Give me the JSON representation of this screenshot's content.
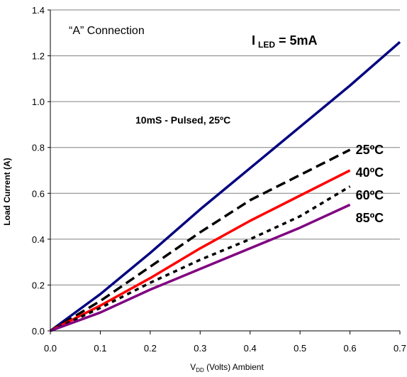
{
  "chart_data": {
    "type": "line",
    "title": "",
    "xlabel": {
      "main": "V",
      "sub": "DD",
      "rest": " (Volts) Ambient"
    },
    "ylabel": "Load Current (A)",
    "xlim": [
      0,
      0.7
    ],
    "ylim": [
      0,
      1.4
    ],
    "x_ticks": [
      "0.0",
      "0.1",
      "0.2",
      "0.3",
      "0.4",
      "0.5",
      "0.6",
      "0.7"
    ],
    "y_ticks": [
      "0.0",
      "0.2",
      "0.4",
      "0.6",
      "0.8",
      "1.0",
      "1.2",
      "1.4"
    ],
    "grid": "horizontal",
    "legend": "none",
    "annotations": {
      "connection": "“A” Connection",
      "iled_main": "I",
      "iled_sub": "LED",
      "iled_rest": " = 5mA",
      "pulsed": "10mS - Pulsed, 25ºC"
    },
    "series": [
      {
        "label": "",
        "color": "#000080",
        "style": "solid",
        "x": [
          0,
          0.1,
          0.2,
          0.3,
          0.4,
          0.5,
          0.6,
          0.7
        ],
        "y": [
          0,
          0.16,
          0.34,
          0.53,
          0.71,
          0.89,
          1.07,
          1.26
        ]
      },
      {
        "label": "25ºC",
        "color": "#000000",
        "style": "dashed",
        "x": [
          0,
          0.1,
          0.2,
          0.3,
          0.4,
          0.5,
          0.6
        ],
        "y": [
          0,
          0.13,
          0.28,
          0.43,
          0.57,
          0.68,
          0.79
        ]
      },
      {
        "label": "40ºC",
        "color": "#ff0000",
        "style": "solid",
        "x": [
          0,
          0.1,
          0.2,
          0.3,
          0.4,
          0.5,
          0.6
        ],
        "y": [
          0,
          0.11,
          0.23,
          0.36,
          0.48,
          0.59,
          0.7
        ]
      },
      {
        "label": "60ºC",
        "color": "#000000",
        "style": "dotted",
        "x": [
          0,
          0.1,
          0.2,
          0.3,
          0.4,
          0.5,
          0.6
        ],
        "y": [
          0,
          0.1,
          0.21,
          0.31,
          0.4,
          0.5,
          0.63
        ]
      },
      {
        "label": "85ºC",
        "color": "#800080",
        "style": "solid",
        "x": [
          0,
          0.1,
          0.2,
          0.3,
          0.4,
          0.5,
          0.6
        ],
        "y": [
          0,
          0.08,
          0.18,
          0.27,
          0.36,
          0.45,
          0.55
        ]
      }
    ]
  }
}
